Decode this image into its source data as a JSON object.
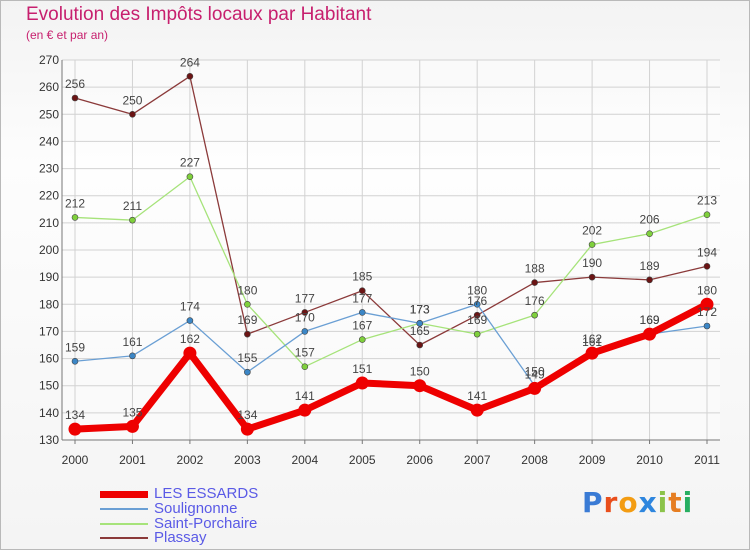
{
  "title": "Evolution des Impôts locaux par Habitant",
  "subtitle": "(en € et par an)",
  "logo": {
    "letters": [
      "P",
      "r",
      "o",
      "x",
      "i",
      "t",
      "i"
    ],
    "colors": [
      "#3a7bd5",
      "#e94e1b",
      "#f39c12",
      "#2e86de",
      "#8bc34a",
      "#e67e22",
      "#27ae60"
    ]
  },
  "chart_data": {
    "type": "line",
    "title": "Evolution des Impôts locaux par Habitant",
    "subtitle": "(en € et par an)",
    "xlabel": "",
    "ylabel": "",
    "ylim": [
      130,
      270
    ],
    "yticks": [
      "130",
      "140",
      "150",
      "160",
      "170",
      "180",
      "190",
      "200",
      "210",
      "220",
      "230",
      "240",
      "250",
      "260",
      "270"
    ],
    "categories": [
      "2000",
      "2001",
      "2002",
      "2003",
      "2004",
      "2005",
      "2006",
      "2007",
      "2008",
      "2009",
      "2010",
      "2011"
    ],
    "grid": true,
    "legend_position": "bottom-left",
    "series": [
      {
        "name": "LES ESSARDS",
        "color": "#ee0000",
        "marker": "#ee0000",
        "values": [
          134,
          135,
          162,
          134,
          141,
          151,
          150,
          141,
          149,
          162,
          169,
          180
        ],
        "labels": [
          "134",
          "135",
          "162",
          "134",
          "141",
          "151",
          "150",
          "141",
          "149",
          "162",
          "169",
          "180"
        ]
      },
      {
        "name": "Soulignonne",
        "color": "#6a9fd4",
        "marker": "#3b86c6",
        "values": [
          159,
          161,
          174,
          155,
          170,
          177,
          173,
          180,
          150,
          161,
          169,
          172
        ],
        "labels": [
          "159",
          "161",
          "174",
          "155",
          "170",
          "177",
          "173",
          "180",
          "150",
          "161",
          "169",
          "172"
        ]
      },
      {
        "name": "Saint-Porchaire",
        "color": "#a6e37a",
        "marker": "#7fd03c",
        "values": [
          212,
          211,
          227,
          180,
          157,
          167,
          173,
          169,
          176,
          202,
          206,
          213
        ],
        "labels": [
          "212",
          "211",
          "227",
          "180",
          "157",
          "167",
          "173",
          "169",
          "176",
          "202",
          "206",
          "213"
        ]
      },
      {
        "name": "Plassay",
        "color": "#8b3a3a",
        "marker": "#6b1414",
        "values": [
          256,
          250,
          264,
          169,
          177,
          185,
          165,
          176,
          188,
          190,
          189,
          194
        ],
        "labels": [
          "256",
          "250",
          "264",
          "169",
          "177",
          "185",
          "165",
          "176",
          "188",
          "190",
          "189",
          "194"
        ]
      }
    ]
  }
}
